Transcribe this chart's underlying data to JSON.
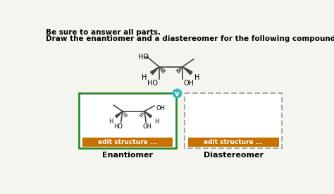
{
  "bg_color": "#f5f5f0",
  "text_bold_1": "Be sure to answer all parts.",
  "text_bold_2": "Draw the enantiomer and a diastereomer for the following compound.",
  "enantiomer_label": "Enantiomer",
  "diastereomer_label": "Diastereomer",
  "edit_button_text": "edit structure ...",
  "edit_button_color": "#c87000",
  "edit_button_text_color": "#ffffff",
  "green_box_color": "#2d8a2d",
  "dashed_box_color": "#aaaaaa",
  "checkmark_color": "#3cb8b8",
  "line_color": "#444444",
  "text_color": "#000000"
}
